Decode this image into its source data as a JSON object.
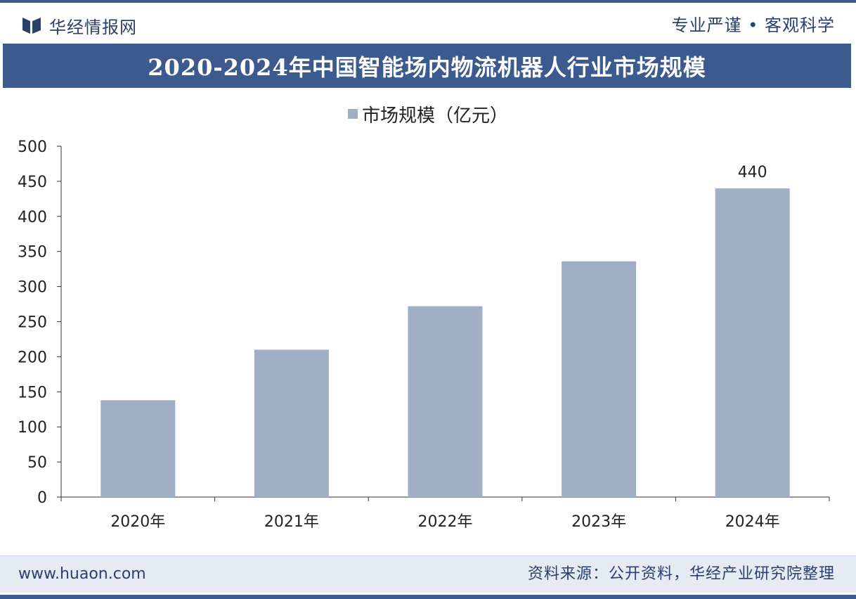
{
  "header": {
    "brand": "华经情报网",
    "slogan": "专业严谨 • 客观科学"
  },
  "title": "2020-2024年中国智能场内物流机器人行业市场规模",
  "footer": {
    "website": "www.huaon.com",
    "source": "资料来源：公开资料，华经产业研究院整理"
  },
  "colors": {
    "accent": "#3d5a8f",
    "bar": "#a0aec6",
    "footer_bg": "#e6ebf3"
  },
  "chart_data": {
    "type": "bar",
    "title": "2020-2024年中国智能场内物流机器人行业市场规模",
    "categories": [
      "2020年",
      "2021年",
      "2022年",
      "2023年",
      "2024年"
    ],
    "series": [
      {
        "name": "市场规模（亿元）",
        "values": [
          138,
          210,
          272,
          336,
          440
        ]
      }
    ],
    "data_labels": [
      {
        "category": "2024年",
        "text": "440"
      }
    ],
    "ylim": [
      0,
      500
    ],
    "yticks": [
      0,
      50,
      100,
      150,
      200,
      250,
      300,
      350,
      400,
      450,
      500
    ],
    "xlabel": "",
    "ylabel": "",
    "grid": false,
    "legend": "top-center"
  }
}
